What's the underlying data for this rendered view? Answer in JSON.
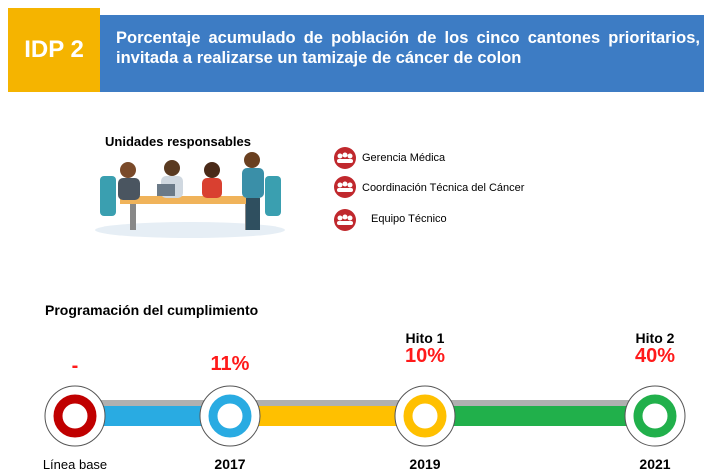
{
  "header": {
    "badge": "IDP 2",
    "title": "Porcentaje acumulado de población de los cinco cantones prioritarios, invitada a realizarse un tamizaje de cáncer de colon"
  },
  "units": {
    "title": "Unidades responsables",
    "items": [
      "Gerencia Médica",
      "Coordinación Técnica del Cáncer",
      "Equipo Técnico"
    ]
  },
  "timeline": {
    "title": "Programación del cumplimiento",
    "milestones": [
      {
        "label": "Línea base",
        "value": "-"
      },
      {
        "label": "2017",
        "value": "11%"
      },
      {
        "label": "2019",
        "value": "10%",
        "hito": "Hito 1"
      },
      {
        "label": "2021",
        "value": "40%",
        "hito": "Hito 2"
      }
    ]
  }
}
